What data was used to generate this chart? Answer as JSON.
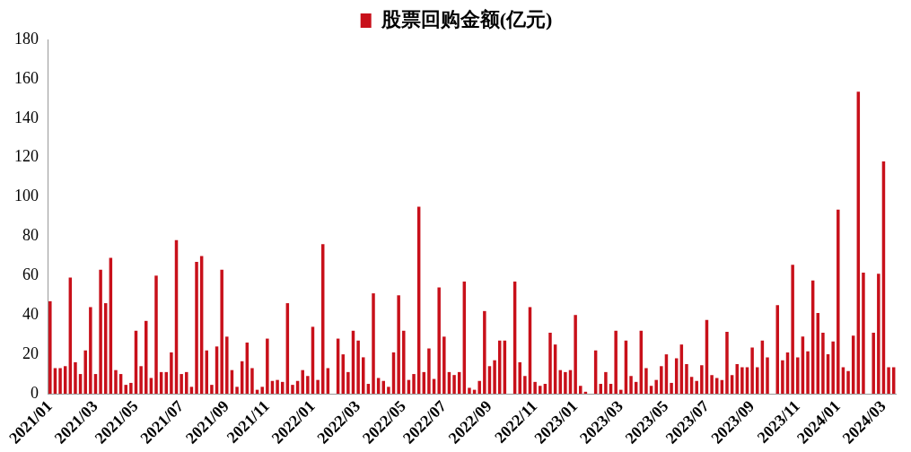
{
  "chart_data": {
    "type": "bar",
    "categories": [
      "2021/01",
      null,
      null,
      null,
      null,
      null,
      null,
      null,
      null,
      "2021/03",
      null,
      null,
      null,
      null,
      null,
      null,
      null,
      "2021/05",
      null,
      null,
      null,
      null,
      null,
      null,
      null,
      null,
      "2021/07",
      null,
      null,
      null,
      null,
      null,
      null,
      null,
      null,
      "2021/09",
      null,
      null,
      null,
      null,
      null,
      null,
      null,
      "2021/11",
      null,
      null,
      null,
      null,
      null,
      null,
      null,
      null,
      "2022/01",
      null,
      null,
      null,
      null,
      null,
      null,
      null,
      null,
      "2022/03",
      null,
      null,
      null,
      null,
      null,
      null,
      null,
      null,
      "2022/05",
      null,
      null,
      null,
      null,
      null,
      null,
      null,
      "2022/07",
      null,
      null,
      null,
      null,
      null,
      null,
      null,
      null,
      "2022/09",
      null,
      null,
      null,
      null,
      null,
      null,
      null,
      null,
      "2022/11",
      null,
      null,
      null,
      null,
      null,
      null,
      null,
      "2023/01",
      null,
      null,
      null,
      null,
      null,
      null,
      null,
      null,
      "2023/03",
      null,
      null,
      null,
      null,
      null,
      null,
      null,
      null,
      "2023/05",
      null,
      null,
      null,
      null,
      null,
      null,
      null,
      "2023/07",
      null,
      null,
      null,
      null,
      null,
      null,
      null,
      null,
      "2023/09",
      null,
      null,
      null,
      null,
      null,
      null,
      null,
      null,
      "2023/11",
      null,
      null,
      null,
      null,
      null,
      null,
      null,
      "2024/01",
      null,
      null,
      null,
      null,
      null,
      null,
      null,
      null,
      "2024/03",
      null,
      null
    ],
    "series": [
      {
        "name": "股票回购金额(亿元)",
        "color": "#c8101a",
        "values": [
          47,
          13,
          13,
          14,
          59,
          16,
          10,
          22,
          44,
          10,
          63,
          46,
          69,
          12,
          10,
          4.5,
          5.5,
          32,
          14,
          37,
          8,
          60,
          11,
          11,
          21,
          78,
          10,
          11,
          3.5,
          67,
          70,
          22,
          4.5,
          24,
          63,
          29,
          12,
          3.5,
          16.5,
          26,
          13,
          2,
          3.5,
          28,
          6.5,
          7,
          6,
          46,
          4.5,
          6.5,
          12,
          9,
          34,
          7,
          76,
          13,
          null,
          28,
          20,
          11,
          32,
          27,
          18.5,
          5,
          51,
          8,
          6.5,
          3.5,
          21,
          50,
          32,
          7,
          10,
          95,
          11,
          23,
          7.5,
          54,
          29,
          11,
          9.5,
          11,
          57,
          3,
          2,
          6.5,
          42,
          14,
          17,
          27,
          27,
          null,
          57,
          16,
          9,
          44,
          6,
          4,
          5,
          31,
          25,
          12,
          11,
          12,
          40,
          4,
          1,
          null,
          22,
          5,
          11,
          5,
          32,
          2,
          27,
          9,
          6,
          32,
          13,
          4,
          7,
          14,
          20,
          5.5,
          18,
          25,
          15,
          8.5,
          6.5,
          14.5,
          37.5,
          9.5,
          8,
          7,
          31.5,
          9.5,
          15,
          13.5,
          13.5,
          23.5,
          13.5,
          27,
          18.5,
          null,
          45,
          17,
          21,
          65.5,
          18.5,
          29,
          21.5,
          57.5,
          41,
          31,
          20,
          26.5,
          93.5,
          13.5,
          11.5,
          29.5,
          153.5,
          61.5,
          null,
          31,
          61,
          118,
          13.5,
          13.5
        ]
      }
    ],
    "ylim": [
      0,
      180
    ],
    "yticks": [
      0,
      20,
      40,
      60,
      80,
      100,
      120,
      140,
      160,
      180
    ],
    "grid": false,
    "legend": "top"
  }
}
